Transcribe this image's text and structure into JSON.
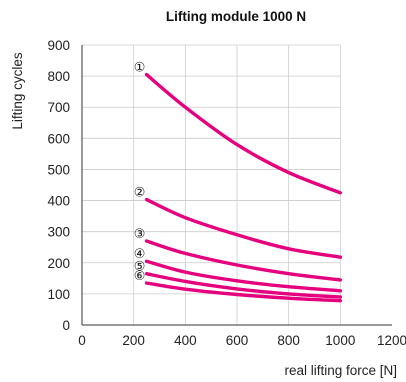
{
  "chart_data": {
    "type": "line",
    "title": "Lifting module 1000 N",
    "xlabel": "real lifting force [N]",
    "ylabel": "Lifting cycles",
    "xlim": [
      0,
      1200
    ],
    "ylim": [
      0,
      900
    ],
    "xticks": [
      "0",
      "200",
      "400",
      "600",
      "800",
      "1000",
      "1200"
    ],
    "yticks": [
      "0",
      "100",
      "200",
      "300",
      "400",
      "500",
      "600",
      "700",
      "800",
      "900"
    ],
    "grid": true,
    "line_color": "#e5007e",
    "series": [
      {
        "marker": "①",
        "x": [
          250,
          400,
          600,
          800,
          1000
        ],
        "y": [
          805,
          700,
          580,
          490,
          425
        ]
      },
      {
        "marker": "②",
        "x": [
          250,
          400,
          600,
          800,
          1000
        ],
        "y": [
          403,
          345,
          290,
          245,
          218
        ]
      },
      {
        "marker": "③",
        "x": [
          250,
          400,
          600,
          800,
          1000
        ],
        "y": [
          270,
          230,
          193,
          165,
          145
        ]
      },
      {
        "marker": "④",
        "x": [
          250,
          400,
          600,
          800,
          1000
        ],
        "y": [
          205,
          170,
          142,
          123,
          110
        ]
      },
      {
        "marker": "⑤",
        "x": [
          250,
          400,
          600,
          800,
          1000
        ],
        "y": [
          165,
          140,
          116,
          100,
          90
        ]
      },
      {
        "marker": "⑥",
        "x": [
          250,
          400,
          600,
          800,
          1000
        ],
        "y": [
          135,
          115,
          98,
          86,
          78
        ]
      }
    ]
  }
}
